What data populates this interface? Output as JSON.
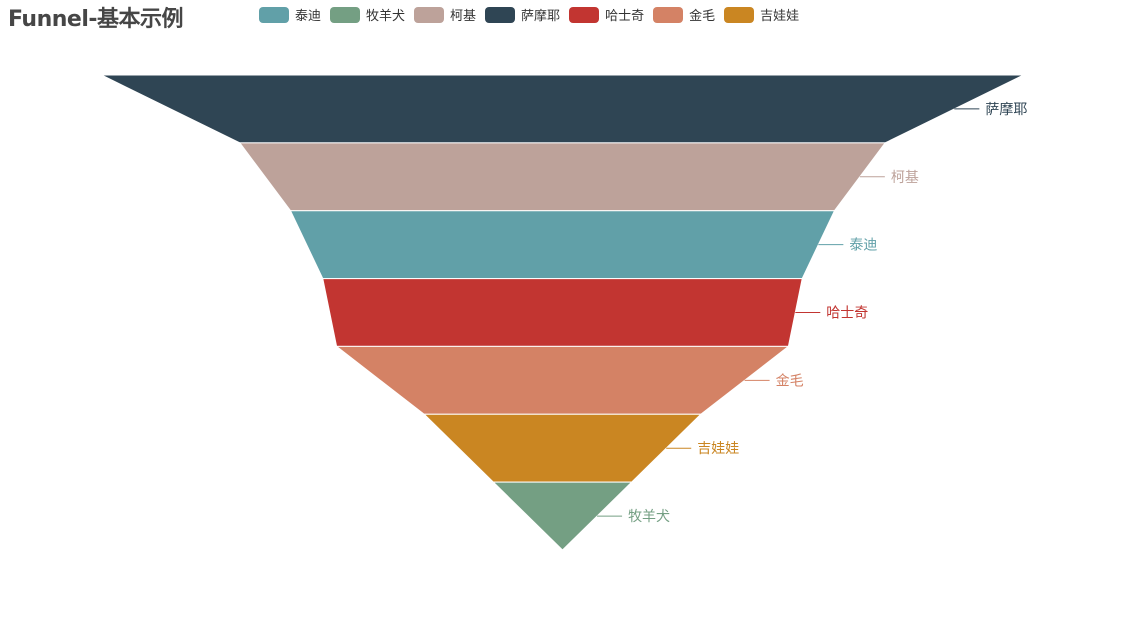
{
  "chart_data": {
    "type": "funnel",
    "title": "Funnel-基本示例",
    "legend": [
      "泰迪",
      "牧羊犬",
      "柯基",
      "萨摩耶",
      "哈士奇",
      "金毛",
      "吉娃娃"
    ],
    "series": [
      {
        "name": "泰迪",
        "value": 118,
        "color": "#61a0a8"
      },
      {
        "name": "牧羊犬",
        "value": 30,
        "color": "#749f83"
      },
      {
        "name": "柯基",
        "value": 140,
        "color": "#bda29a"
      },
      {
        "name": "萨摩耶",
        "value": 200,
        "color": "#2f4554"
      },
      {
        "name": "哈士奇",
        "value": 104,
        "color": "#c23531"
      },
      {
        "name": "金毛",
        "value": 98,
        "color": "#d48265"
      },
      {
        "name": "吉娃娃",
        "value": 60,
        "color": "#ca8622"
      }
    ],
    "sort": "descending",
    "label_position": "right"
  }
}
